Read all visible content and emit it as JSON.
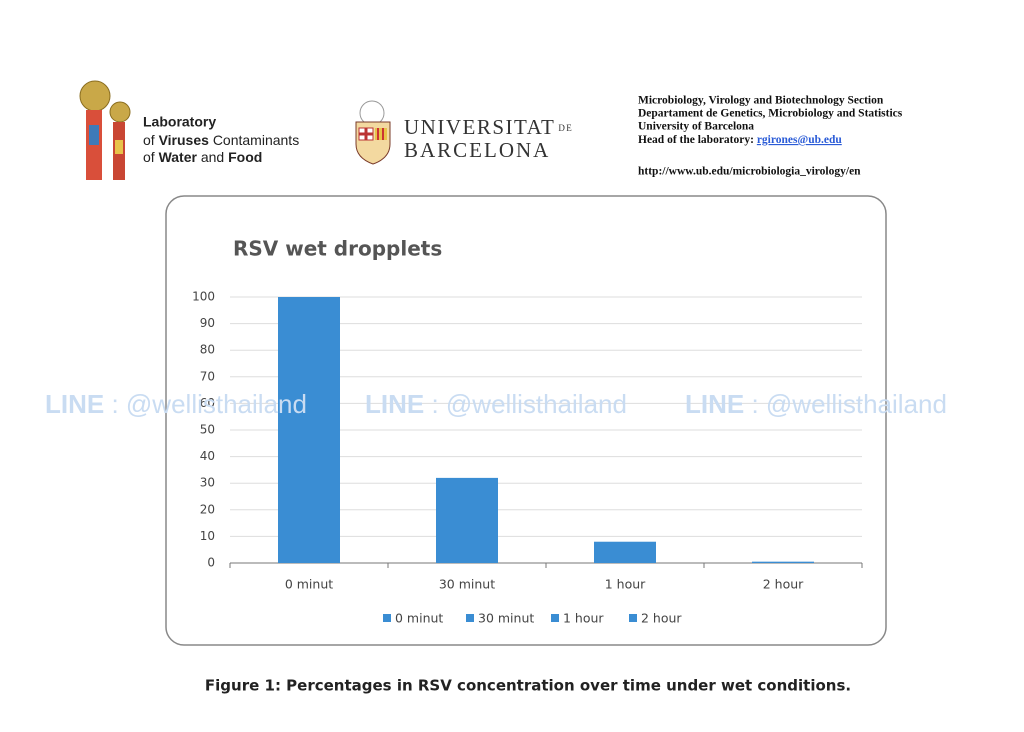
{
  "header": {
    "lab": {
      "line1": "Laboratory",
      "line2": [
        "of",
        "Viruses",
        "Contaminants"
      ],
      "line3": [
        "of",
        "Water",
        "and",
        "Food"
      ]
    },
    "university": {
      "word1": "UNIVERSITAT",
      "word2": "DE",
      "word3": "BARCELONA"
    },
    "section": {
      "lines": [
        "Microbiology, Virology and Biotechnology Section",
        "Departament de Genetics, Microbiology and Statistics",
        "University of Barcelona"
      ],
      "head_label": "Head of the laboratory:",
      "email": "rgirones@ub.edu",
      "url": "http://www.ub.edu/microbiologia_virology/en"
    }
  },
  "watermark": {
    "brand": "LINE",
    "handle": ": @wellisthailand"
  },
  "chart_data": {
    "type": "bar",
    "title": "RSV wet dropplets",
    "categories": [
      "0 minut",
      "30 minut",
      "1 hour",
      "2 hour"
    ],
    "values": [
      100,
      32,
      8,
      0.5
    ],
    "color": "#3a8dd3",
    "ylim": [
      0,
      100
    ],
    "yticks": [
      0,
      10,
      20,
      30,
      40,
      50,
      60,
      70,
      80,
      90,
      100
    ],
    "grid": true,
    "legend": "bottom"
  },
  "caption": "Figure 1: Percentages in RSV concentration over time under wet conditions."
}
